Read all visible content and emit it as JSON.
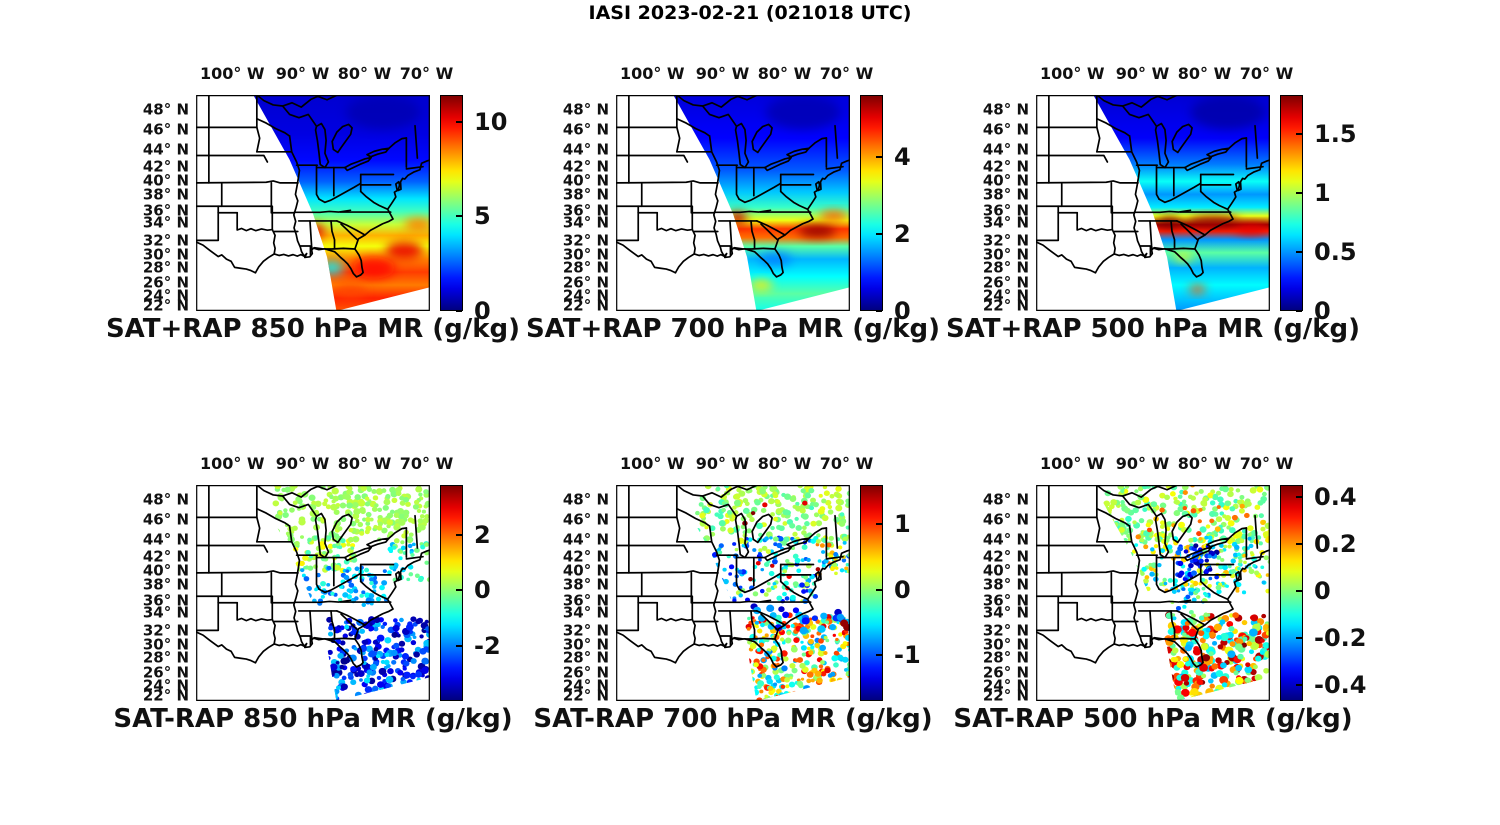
{
  "figure": {
    "title": "IASI 2023-02-21 (021018 UTC)",
    "background_color": "#ffffff"
  },
  "axes": {
    "lon_labels": [
      "100° W",
      "90° W",
      "80° W",
      "70° W"
    ],
    "lat_labels": [
      "48° N",
      "46° N",
      "44° N",
      "42° N",
      "40° N",
      "38° N",
      "36° N",
      "34° N",
      "32° N",
      "30° N",
      "28° N",
      "26° N",
      "24° N",
      "22° N"
    ]
  },
  "map": {
    "region": "Eastern United States state boundaries",
    "extent_lon_deg_w": [
      106,
      69.5
    ],
    "extent_lat_deg_n": [
      21,
      49.5
    ],
    "swath_polygon_pct": [
      [
        24.5,
        0
      ],
      [
        100,
        0
      ],
      [
        100,
        89
      ],
      [
        60,
        100
      ],
      [
        56,
        75
      ],
      [
        50,
        55
      ],
      [
        40,
        30
      ]
    ]
  },
  "chart_data": [
    {
      "type": "heatmap",
      "position": "row1-col1",
      "operation": "SAT+RAP",
      "level_hPa": 850,
      "variable": "MR",
      "units": "g/kg",
      "title": "SAT+RAP 850 hPa MR (g/kg)",
      "colorbar": {
        "colormap": "jet",
        "vmin": 0,
        "vmax": 11.4,
        "ticks": [
          0,
          5,
          10
        ],
        "tick_labels": [
          "0",
          "5",
          "10"
        ]
      },
      "lat_profile": [
        [
          0,
          0.9
        ],
        [
          0.18,
          1.1
        ],
        [
          0.3,
          1.5
        ],
        [
          0.4,
          2.5
        ],
        [
          0.48,
          4
        ],
        [
          0.54,
          5
        ],
        [
          0.6,
          6.5
        ],
        [
          0.65,
          8
        ],
        [
          0.7,
          7
        ],
        [
          0.76,
          8.5
        ],
        [
          0.82,
          9.3
        ],
        [
          0.88,
          8.6
        ],
        [
          0.94,
          9.6
        ],
        [
          1,
          9
        ]
      ],
      "hotspots": [
        [
          51,
          63,
          4,
          3.5,
          10.3
        ],
        [
          76,
          80,
          9,
          5,
          9.8
        ],
        [
          89,
          72,
          8,
          4,
          10.2
        ],
        [
          66,
          91,
          7,
          3,
          9.2
        ],
        [
          95,
          60,
          6,
          3,
          8.6
        ],
        [
          58,
          80,
          5,
          3,
          4.2
        ],
        [
          80,
          8,
          16,
          8,
          0.6
        ]
      ]
    },
    {
      "type": "heatmap",
      "position": "row1-col2",
      "operation": "SAT+RAP",
      "level_hPa": 700,
      "variable": "MR",
      "units": "g/kg",
      "title": "SAT+RAP 700 hPa MR (g/kg)",
      "colorbar": {
        "colormap": "jet",
        "vmin": 0,
        "vmax": 5.6,
        "ticks": [
          0,
          2,
          4
        ],
        "tick_labels": [
          "0",
          "2",
          "4"
        ]
      },
      "lat_profile": [
        [
          0,
          0.5
        ],
        [
          0.2,
          0.7
        ],
        [
          0.35,
          1.2
        ],
        [
          0.45,
          1.8
        ],
        [
          0.52,
          2.4
        ],
        [
          0.58,
          3.4
        ],
        [
          0.62,
          4.6
        ],
        [
          0.66,
          4.3
        ],
        [
          0.7,
          2.6
        ],
        [
          0.76,
          1.7
        ],
        [
          0.84,
          2.1
        ],
        [
          0.92,
          2.6
        ],
        [
          1,
          2.2
        ]
      ],
      "hotspots": [
        [
          52,
          57,
          4,
          3,
          5.2
        ],
        [
          86,
          63,
          8,
          3,
          5.5
        ],
        [
          93,
          56,
          6,
          2.5,
          4.4
        ],
        [
          62,
          88,
          5,
          2.5,
          3.6
        ],
        [
          68,
          76,
          7,
          3,
          1.4
        ],
        [
          80,
          8,
          16,
          8,
          0.3
        ]
      ]
    },
    {
      "type": "heatmap",
      "position": "row1-col3",
      "operation": "SAT+RAP",
      "level_hPa": 500,
      "variable": "MR",
      "units": "g/kg",
      "title": "SAT+RAP 500 hPa MR (g/kg)",
      "colorbar": {
        "colormap": "jet",
        "vmin": 0,
        "vmax": 1.83,
        "ticks": [
          0,
          0.5,
          1,
          1.5
        ],
        "tick_labels": [
          "0",
          "0.5",
          "1",
          "1.5"
        ]
      },
      "lat_profile": [
        [
          0,
          0.15
        ],
        [
          0.2,
          0.22
        ],
        [
          0.32,
          0.45
        ],
        [
          0.4,
          0.7
        ],
        [
          0.46,
          0.5
        ],
        [
          0.52,
          0.65
        ],
        [
          0.56,
          1.1
        ],
        [
          0.6,
          1.78
        ],
        [
          0.63,
          1.55
        ],
        [
          0.67,
          0.5
        ],
        [
          0.73,
          0.85
        ],
        [
          0.8,
          0.55
        ],
        [
          0.88,
          0.68
        ],
        [
          1,
          0.5
        ]
      ],
      "hotspots": [
        [
          57,
          59,
          5,
          2.5,
          1.82
        ],
        [
          76,
          58.5,
          11,
          2.5,
          1.78
        ],
        [
          92,
          62,
          7,
          2.5,
          1.65
        ],
        [
          69,
          90,
          3.5,
          2,
          1.45
        ],
        [
          63,
          75,
          4,
          2,
          1.1
        ],
        [
          82,
          8,
          16,
          8,
          0.08
        ]
      ]
    },
    {
      "type": "scatter",
      "position": "row2-col1",
      "operation": "SAT-RAP",
      "level_hPa": 850,
      "variable": "MR",
      "units": "g/kg",
      "title": "SAT-RAP 850 hPa MR (g/kg)",
      "colorbar": {
        "colormap": "jet",
        "vmin": -4,
        "vmax": 3.8,
        "ticks": [
          -2,
          0,
          2
        ],
        "tick_labels": [
          "-2",
          "0",
          "2"
        ]
      },
      "dot_clusters": [
        [
          34,
          100,
          0,
          26,
          230,
          -0.1,
          0.5,
          0.9,
          1.6
        ],
        [
          42,
          68,
          24,
          40,
          70,
          -0.6,
          1.0,
          0.8,
          1.4
        ],
        [
          45,
          82,
          38,
          56,
          80,
          -2.4,
          -0.7,
          0.8,
          1.3
        ],
        [
          56,
          100,
          62,
          100,
          280,
          -3.9,
          -1.2,
          0.8,
          1.7
        ],
        [
          82,
          100,
          26,
          44,
          40,
          -1.8,
          0.1,
          0.8,
          1.3
        ]
      ]
    },
    {
      "type": "scatter",
      "position": "row2-col2",
      "operation": "SAT-RAP",
      "level_hPa": 700,
      "variable": "MR",
      "units": "g/kg",
      "title": "SAT-RAP 700 hPa MR (g/kg)",
      "colorbar": {
        "colormap": "jet",
        "vmin": -1.7,
        "vmax": 1.6,
        "ticks": [
          -1,
          0,
          1
        ],
        "tick_labels": [
          "-1",
          "0",
          "1"
        ]
      },
      "dot_clusters": [
        [
          34,
          100,
          0,
          26,
          210,
          -0.25,
          0.3,
          0.9,
          1.5
        ],
        [
          40,
          86,
          24,
          54,
          150,
          -1.3,
          0.25,
          0.75,
          1.3
        ],
        [
          86,
          100,
          26,
          42,
          45,
          -1.0,
          0.9,
          0.75,
          1.2
        ],
        [
          56,
          100,
          60,
          100,
          320,
          -0.9,
          1.3,
          0.7,
          1.5
        ],
        [
          58,
          100,
          56,
          68,
          25,
          -1.5,
          -0.6,
          1.3,
          1.8
        ],
        [
          40,
          95,
          8,
          50,
          10,
          1.2,
          1.6,
          0.9,
          1.2
        ],
        [
          95,
          99,
          62,
          66,
          2,
          1.5,
          1.6,
          1.6,
          1.8
        ]
      ]
    },
    {
      "type": "scatter",
      "position": "row2-col3",
      "operation": "SAT-RAP",
      "level_hPa": 500,
      "variable": "MR",
      "units": "g/kg",
      "title": "SAT-RAP 500 hPa MR (g/kg)",
      "colorbar": {
        "colormap": "jet",
        "vmin": -0.47,
        "vmax": 0.45,
        "ticks": [
          -0.4,
          -0.2,
          0,
          0.2,
          0.4
        ],
        "tick_labels": [
          "-0.4",
          "-0.2",
          "0",
          "0.2",
          "0.4"
        ]
      },
      "dot_clusters": [
        [
          30,
          100,
          0,
          26,
          240,
          -0.08,
          0.1,
          0.9,
          1.5
        ],
        [
          40,
          100,
          0,
          30,
          20,
          0.15,
          0.3,
          0.9,
          1.3
        ],
        [
          38,
          100,
          24,
          50,
          210,
          -0.2,
          0.18,
          0.75,
          1.3
        ],
        [
          60,
          78,
          28,
          44,
          55,
          -0.46,
          -0.22,
          0.8,
          1.3
        ],
        [
          56,
          100,
          60,
          100,
          300,
          -0.2,
          0.45,
          1.0,
          1.9
        ],
        [
          58,
          74,
          48,
          62,
          30,
          -0.3,
          0.05,
          0.75,
          1.1
        ]
      ]
    }
  ]
}
